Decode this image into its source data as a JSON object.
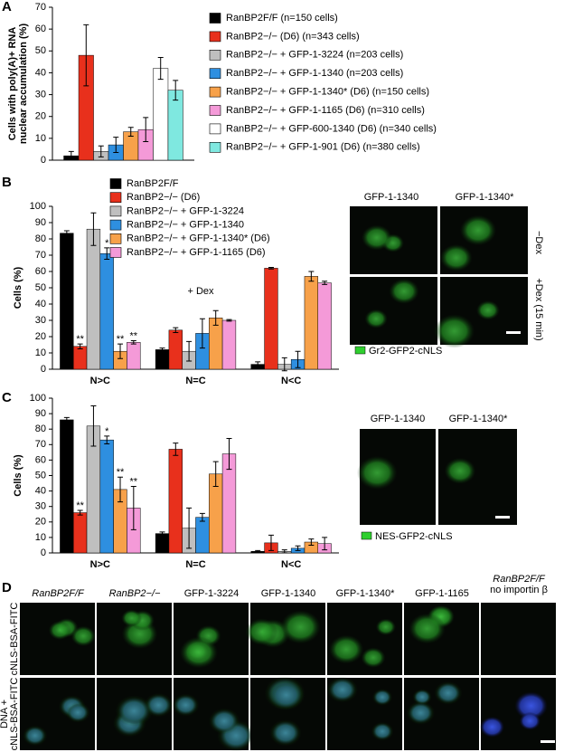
{
  "panel_labels": [
    "A",
    "B",
    "C",
    "D"
  ],
  "chart_data": [
    {
      "type": "bar",
      "ylabel": [
        "Cells with poly(A)+ RNA",
        "nuclear accumulation (%)"
      ],
      "categories": [
        null
      ],
      "ylim": [
        0,
        70
      ],
      "yticks": [
        0,
        10,
        20,
        30,
        40,
        50,
        60,
        70
      ],
      "series": [
        {
          "name": "RanBP2F/F (n=150 cells)",
          "color": "#000000",
          "values": [
            2
          ],
          "errors": [
            2
          ]
        },
        {
          "name": "RanBP2−/− (D6) (n=343 cells)",
          "color": "#e8301c",
          "values": [
            48
          ],
          "errors": [
            14
          ]
        },
        {
          "name": "RanBP2−/− + GFP-1-3224 (n=203 cells)",
          "color": "#bfbfbf",
          "values": [
            4
          ],
          "errors": [
            2.5
          ]
        },
        {
          "name": "RanBP2−/− + GFP-1-1340 (n=203 cells)",
          "color": "#2e8fe0",
          "values": [
            7
          ],
          "errors": [
            3.5
          ]
        },
        {
          "name": "RanBP2−/− + GFP-1-1340* (D6) (n=150 cells)",
          "color": "#f7a14a",
          "values": [
            13
          ],
          "errors": [
            2
          ]
        },
        {
          "name": "RanBP2−/− + GFP-1-1165 (D6) (n=310 cells)",
          "color": "#f49ad8",
          "values": [
            14
          ],
          "errors": [
            5.5
          ]
        },
        {
          "name": "RanBP2−/− + GFP-600-1340 (D6) (n=340 cells)",
          "color": "#ffffff",
          "values": [
            42
          ],
          "errors": [
            5
          ]
        },
        {
          "name": "RanBP2−/− + GFP-1-901 (D6) (n=380 cells)",
          "color": "#7fe8e0",
          "values": [
            32
          ],
          "errors": [
            4.5
          ]
        }
      ]
    },
    {
      "type": "bar",
      "ylabel": "Cells (%)",
      "annotations": [
        "+ Dex"
      ],
      "categories": [
        "N>C",
        "N=C",
        "N<C"
      ],
      "ylim": [
        0,
        100
      ],
      "yticks": [
        0,
        10,
        20,
        30,
        40,
        50,
        60,
        70,
        80,
        90,
        100
      ],
      "series": [
        {
          "name": "RanBP2F/F",
          "color": "#000000",
          "values": [
            83.5,
            12,
            3
          ],
          "errors": [
            1.5,
            1,
            1.5
          ],
          "significance": [
            null,
            null,
            null
          ]
        },
        {
          "name": "RanBP2−/− (D6)",
          "color": "#e8301c",
          "values": [
            14,
            24,
            62
          ],
          "errors": [
            1.5,
            1.5,
            0.5
          ],
          "significance": [
            "**",
            null,
            null
          ]
        },
        {
          "name": "RanBP2−/− + GFP-1-3224",
          "color": "#bfbfbf",
          "values": [
            86,
            11,
            3
          ],
          "errors": [
            10,
            6,
            4
          ],
          "significance": [
            null,
            null,
            null
          ]
        },
        {
          "name": "RanBP2−/− + GFP-1-1340",
          "color": "#2e8fe0",
          "values": [
            71,
            22,
            6
          ],
          "errors": [
            3.5,
            9,
            5
          ],
          "significance": [
            "*",
            null,
            null
          ]
        },
        {
          "name": "RanBP2−/− + GFP-1-1340* (D6)",
          "color": "#f7a14a",
          "values": [
            11,
            31.5,
            57
          ],
          "errors": [
            4.5,
            4.5,
            3
          ],
          "significance": [
            "**",
            null,
            null
          ]
        },
        {
          "name": "RanBP2−/− + GFP-1-1165 (D6)",
          "color": "#f49ad8",
          "values": [
            16.5,
            30,
            53
          ],
          "errors": [
            1,
            0.5,
            1
          ],
          "significance": [
            "**",
            null,
            null
          ]
        }
      ]
    },
    {
      "type": "bar",
      "ylabel": "Cells (%)",
      "categories": [
        "N>C",
        "N=C",
        "N<C"
      ],
      "ylim": [
        0,
        100
      ],
      "yticks": [
        0,
        10,
        20,
        30,
        40,
        50,
        60,
        70,
        80,
        90,
        100
      ],
      "series": [
        {
          "color": "#000000",
          "values": [
            86,
            12.5,
            1
          ],
          "errors": [
            1.5,
            1,
            0.5
          ],
          "significance": [
            null,
            null,
            null
          ]
        },
        {
          "color": "#e8301c",
          "values": [
            26,
            67,
            6.5
          ],
          "errors": [
            1.5,
            4,
            5
          ],
          "significance": [
            "**",
            null,
            null
          ]
        },
        {
          "color": "#bfbfbf",
          "values": [
            82,
            16,
            1
          ],
          "errors": [
            13,
            13,
            1
          ],
          "significance": [
            null,
            null,
            null
          ]
        },
        {
          "color": "#2e8fe0",
          "values": [
            73,
            23,
            3
          ],
          "errors": [
            2.5,
            2.5,
            1.5
          ],
          "significance": [
            "*",
            null,
            null
          ]
        },
        {
          "color": "#f7a14a",
          "values": [
            41,
            51,
            7
          ],
          "errors": [
            8,
            8,
            2
          ],
          "significance": [
            "**",
            null,
            null
          ]
        },
        {
          "color": "#f49ad8",
          "values": [
            29,
            64,
            6
          ],
          "errors": [
            14,
            10,
            4
          ],
          "significance": [
            "**",
            null,
            null
          ]
        }
      ]
    }
  ],
  "images": {
    "B": {
      "columns": [
        "GFP-1-1340",
        "GFP-1-1340*"
      ],
      "rows": [
        "−Dex",
        "+Dex (15 min)"
      ],
      "legend": "Gr2-GFP2-cNLS"
    },
    "C": {
      "columns": [
        "GFP-1-1340",
        "GFP-1-1340*"
      ],
      "legend": "NES-GFP2-cNLS"
    },
    "D": {
      "columns": [
        "RanBP2F/F",
        "RanBP2−/−",
        "GFP-1-3224",
        "GFP-1-1340",
        "GFP-1-1340*",
        "GFP-1-1165",
        [
          "RanBP2F/F",
          "no importin β"
        ]
      ],
      "rows": [
        [
          "cNLS-BSA-FITC"
        ],
        [
          "DNA +",
          "cNLS-BSA-FITC"
        ]
      ]
    }
  }
}
